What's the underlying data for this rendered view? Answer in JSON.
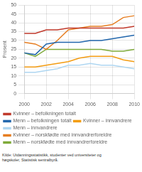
{
  "chart_data": {
    "type": "line",
    "ylabel": "Prosent",
    "x": [
      2000,
      2001,
      2002,
      2003,
      2004,
      2005,
      2006,
      2007,
      2008,
      2009,
      2010
    ],
    "series": [
      {
        "name": "Kvinner – befolkningen totalt",
        "color": "#c0392b",
        "values": [
          34,
          34,
          36,
          36,
          37,
          37,
          37,
          37,
          37,
          37,
          38
        ]
      },
      {
        "name": "Menn – befolkningen totalt",
        "color": "#2166ac",
        "values": [
          23,
          22,
          28,
          29,
          29,
          29,
          30,
          30,
          31,
          32,
          33
        ]
      },
      {
        "name": "Kvinner – innvandrere",
        "color": "#f39c12",
        "values": [
          15,
          15,
          16,
          17,
          18,
          20,
          21,
          21,
          21,
          19,
          18
        ]
      },
      {
        "name": "Menn – innvandrere",
        "color": "#aed6f1",
        "values": [
          12,
          12,
          13,
          14,
          16,
          16,
          17,
          16,
          16,
          15,
          14
        ]
      },
      {
        "name": "Kvinner – norskfødte med innvandrerforeldre",
        "color": "#e67e22",
        "values": [
          29,
          28,
          25,
          30,
          36,
          37,
          38,
          38,
          39,
          43,
          44
        ]
      },
      {
        "name": "Menn – norskfødte med innvandrerforeldre",
        "color": "#7faa3a",
        "values": [
          23,
          21,
          25,
          25,
          25,
          25,
          25,
          25,
          24,
          24,
          25
        ]
      }
    ],
    "xlim": [
      2000,
      2010
    ],
    "xticks": [
      2000,
      2002,
      2004,
      2006,
      2008,
      2010
    ],
    "ylim": [
      0,
      50
    ],
    "yticks": [
      0,
      5,
      10,
      15,
      20,
      25,
      30,
      35,
      40,
      45,
      50
    ],
    "grid": true,
    "legend": "bottom",
    "annotations": [
      "Kilde: Utdanningsstatistikk, studenter ved universiteter og\nhøgskoler, Statistisk sentralbyrå."
    ]
  }
}
